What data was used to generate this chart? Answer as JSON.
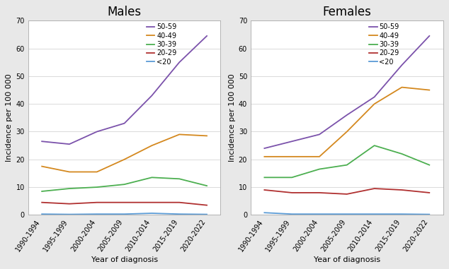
{
  "x_labels": [
    "1990-1994",
    "1995-1999",
    "2000-2004",
    "2005-2009",
    "2010-2014",
    "2015-2019",
    "2020-2022"
  ],
  "x_positions": [
    0,
    1,
    2,
    3,
    4,
    5,
    6
  ],
  "males": {
    "50-59": [
      26.5,
      25.5,
      30.0,
      33.0,
      43.0,
      55.0,
      64.5
    ],
    "40-49": [
      17.5,
      15.5,
      15.5,
      20.0,
      25.0,
      29.0,
      28.5
    ],
    "30-39": [
      8.5,
      9.5,
      10.0,
      11.0,
      13.5,
      13.0,
      10.5
    ],
    "20-29": [
      4.5,
      4.0,
      4.5,
      4.5,
      4.5,
      4.5,
      3.5
    ],
    "<20": [
      0.3,
      0.2,
      0.3,
      0.3,
      0.6,
      0.3,
      0.2
    ]
  },
  "females": {
    "50-59": [
      24.0,
      26.5,
      29.0,
      36.0,
      42.5,
      54.0,
      64.5
    ],
    "40-49": [
      21.0,
      21.0,
      21.0,
      30.0,
      40.0,
      46.0,
      45.0
    ],
    "30-39": [
      13.5,
      13.5,
      16.5,
      18.0,
      25.0,
      22.0,
      18.0
    ],
    "20-29": [
      9.0,
      8.0,
      8.0,
      7.5,
      9.5,
      9.0,
      8.0
    ],
    "<20": [
      0.8,
      0.3,
      0.3,
      0.3,
      0.3,
      0.3,
      0.2
    ]
  },
  "colors": {
    "50-59": "#7B52AB",
    "40-49": "#D4881E",
    "30-39": "#4CAF50",
    "20-29": "#B03030",
    "<20": "#5B9BD5"
  },
  "ylim": [
    0,
    70
  ],
  "yticks": [
    0,
    10,
    20,
    30,
    40,
    50,
    60,
    70
  ],
  "ylabel": "Incidence per 100 000",
  "xlabel": "Year of diagnosis",
  "title_males": "Males",
  "title_females": "Females",
  "legend_labels": [
    "50-59",
    "40-49",
    "30-39",
    "20-29",
    "<20"
  ],
  "fig_facecolor": "#e8e8e8",
  "ax_facecolor": "#ffffff",
  "legend_fontsize": 7,
  "tick_labelsize": 7,
  "title_fontsize": 12,
  "xlabel_fontsize": 8,
  "ylabel_fontsize": 8
}
